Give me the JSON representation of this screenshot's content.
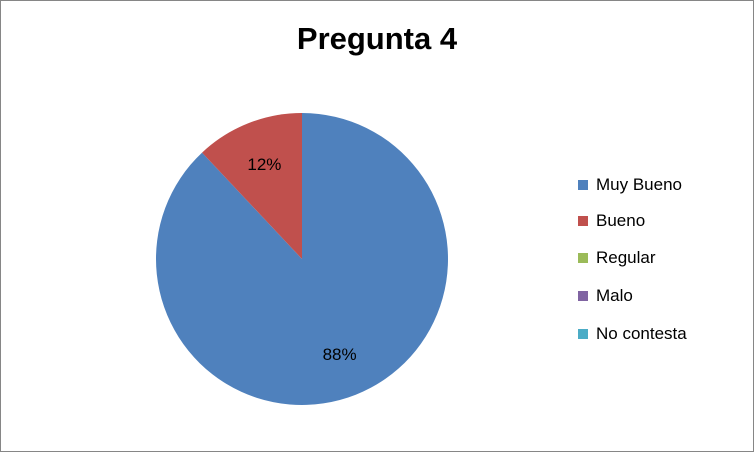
{
  "chart_data": {
    "type": "pie",
    "title": "Pregunta 4",
    "categories": [
      "Muy Bueno",
      "Bueno",
      "Regular",
      "Malo",
      "No contesta"
    ],
    "values": [
      88,
      12,
      0,
      0,
      0
    ],
    "data_labels": [
      "88%",
      "12%",
      "",
      "",
      ""
    ],
    "colors": [
      "#4F81BD",
      "#C0504D",
      "#9BBB59",
      "#8064A2",
      "#4BACC6"
    ],
    "legend_position": "right"
  }
}
